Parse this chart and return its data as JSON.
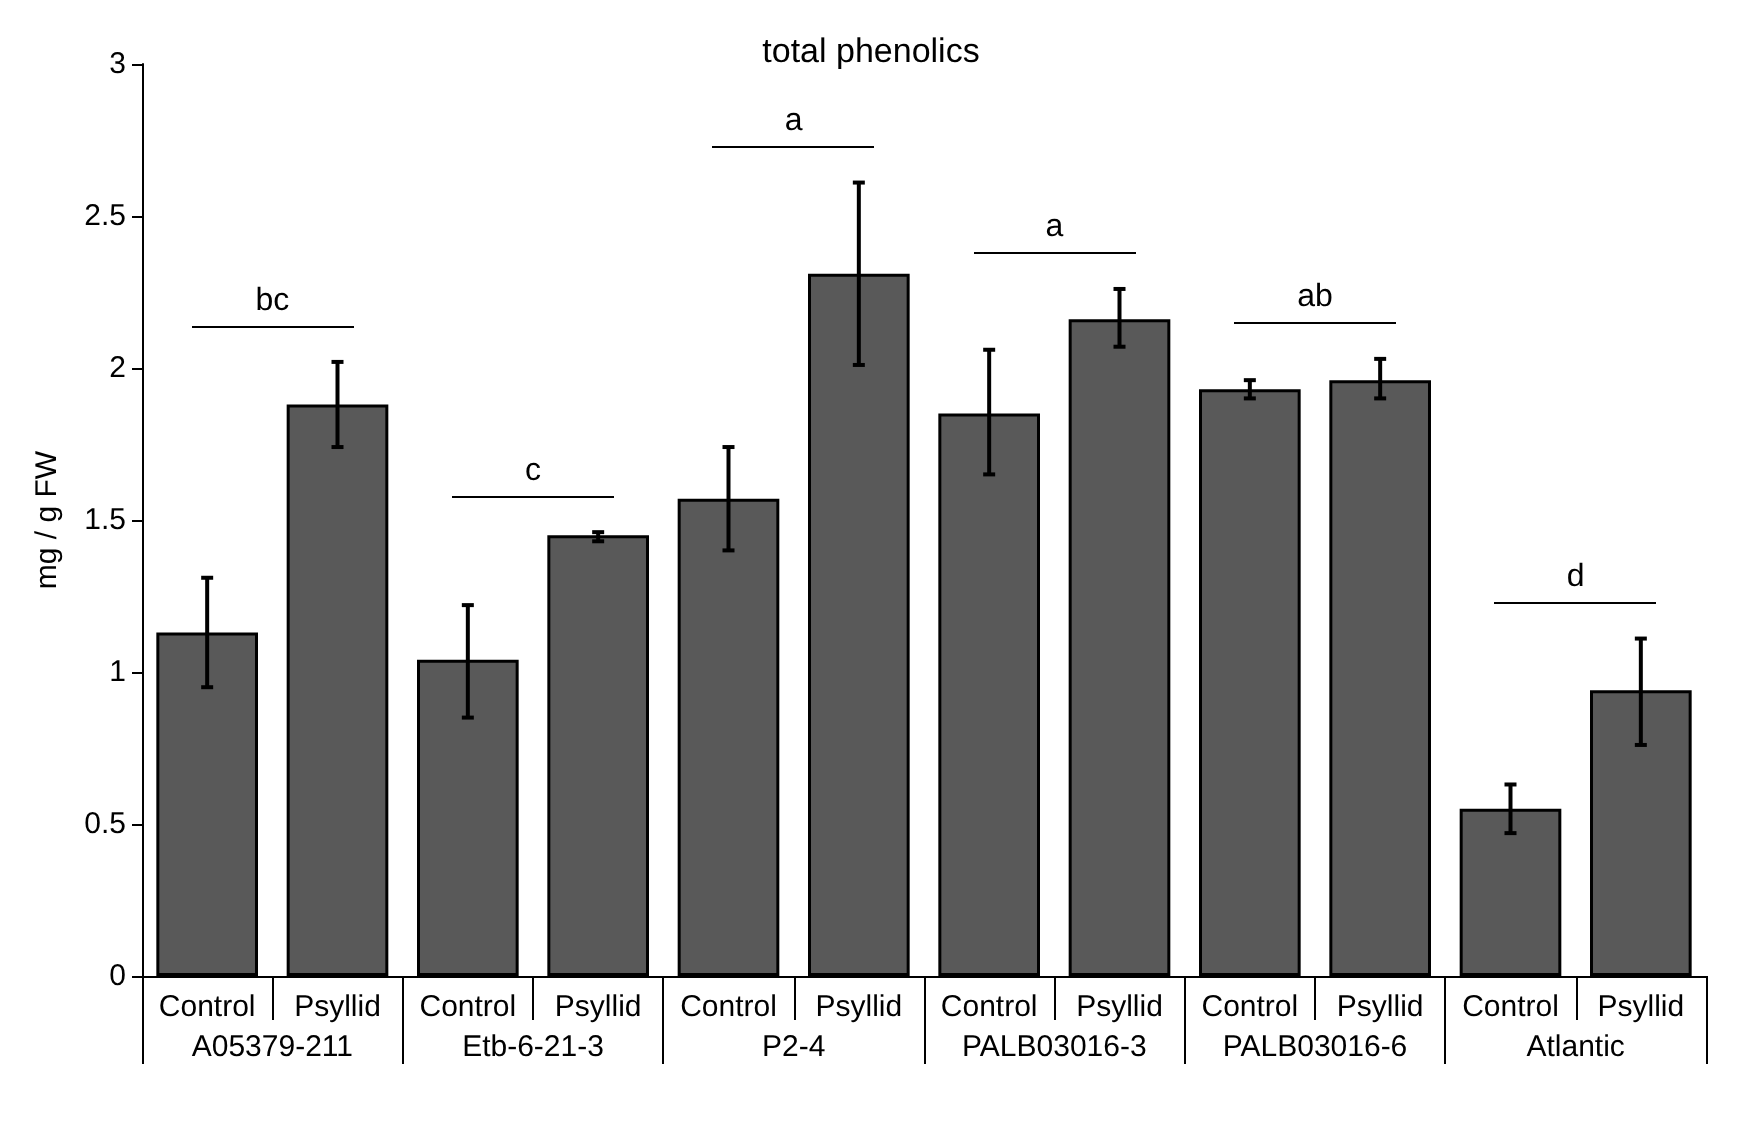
{
  "chart_data": {
    "type": "bar",
    "title": "total phenolics",
    "ylabel": "mg / g FW",
    "categories": [
      "Control",
      "Psyllid",
      "Control",
      "Psyllid",
      "Control",
      "Psyllid",
      "Control",
      "Psyllid",
      "Control",
      "Psyllid",
      "Control",
      "Psyllid"
    ],
    "values": [
      1.13,
      1.88,
      1.04,
      1.45,
      1.57,
      2.31,
      1.85,
      2.16,
      1.93,
      1.96,
      0.55,
      0.94
    ],
    "errors": [
      [
        0.95,
        1.31
      ],
      [
        1.74,
        2.02
      ],
      [
        0.85,
        1.22
      ],
      [
        1.43,
        1.46
      ],
      [
        1.4,
        1.74
      ],
      [
        2.01,
        2.61
      ],
      [
        1.65,
        2.06
      ],
      [
        2.07,
        2.26
      ],
      [
        1.9,
        1.96
      ],
      [
        1.9,
        2.03
      ],
      [
        0.47,
        0.63
      ],
      [
        0.76,
        1.11
      ]
    ],
    "color": "#595959",
    "ylim": [
      0,
      3
    ],
    "yticks": [
      0,
      0.5,
      1,
      1.5,
      2,
      2.5,
      3
    ],
    "grid": false,
    "annotations": [
      "A05379-211",
      "Etb-6-21-3",
      "P2-4",
      "PALB03016-3",
      "PALB03016-6",
      "Atlantic",
      "bc",
      "c",
      "a",
      "a",
      "ab",
      "d"
    ]
  }
}
